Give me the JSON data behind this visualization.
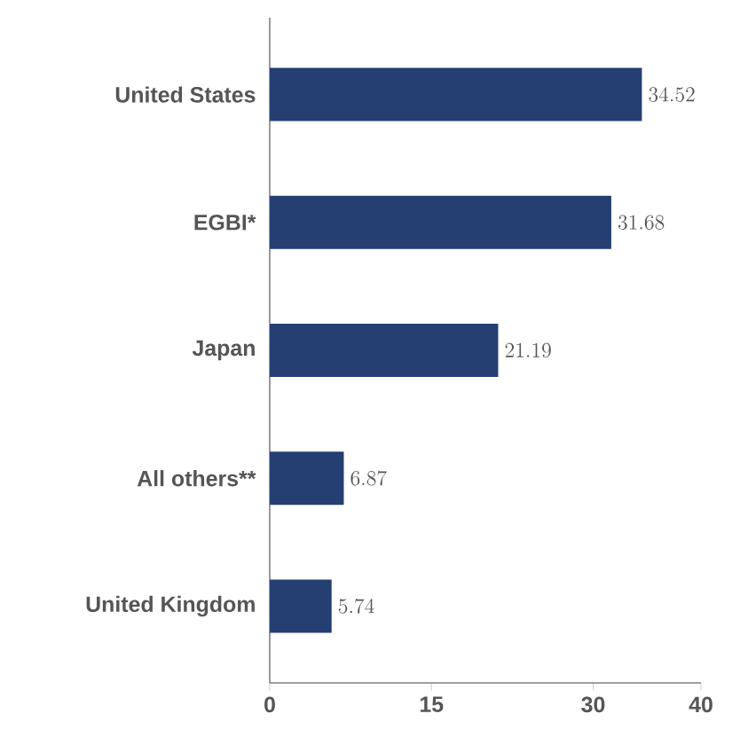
{
  "chart_data": {
    "type": "bar",
    "orientation": "horizontal",
    "categories": [
      "United States",
      "EGBI*",
      "Japan",
      "All others**",
      "United Kingdom"
    ],
    "values": [
      34.52,
      31.68,
      21.19,
      6.87,
      5.74
    ],
    "color": "#253f73",
    "xlim": [
      0,
      40
    ],
    "xticks": [
      0,
      15,
      30,
      40
    ],
    "data_labels": true
  }
}
